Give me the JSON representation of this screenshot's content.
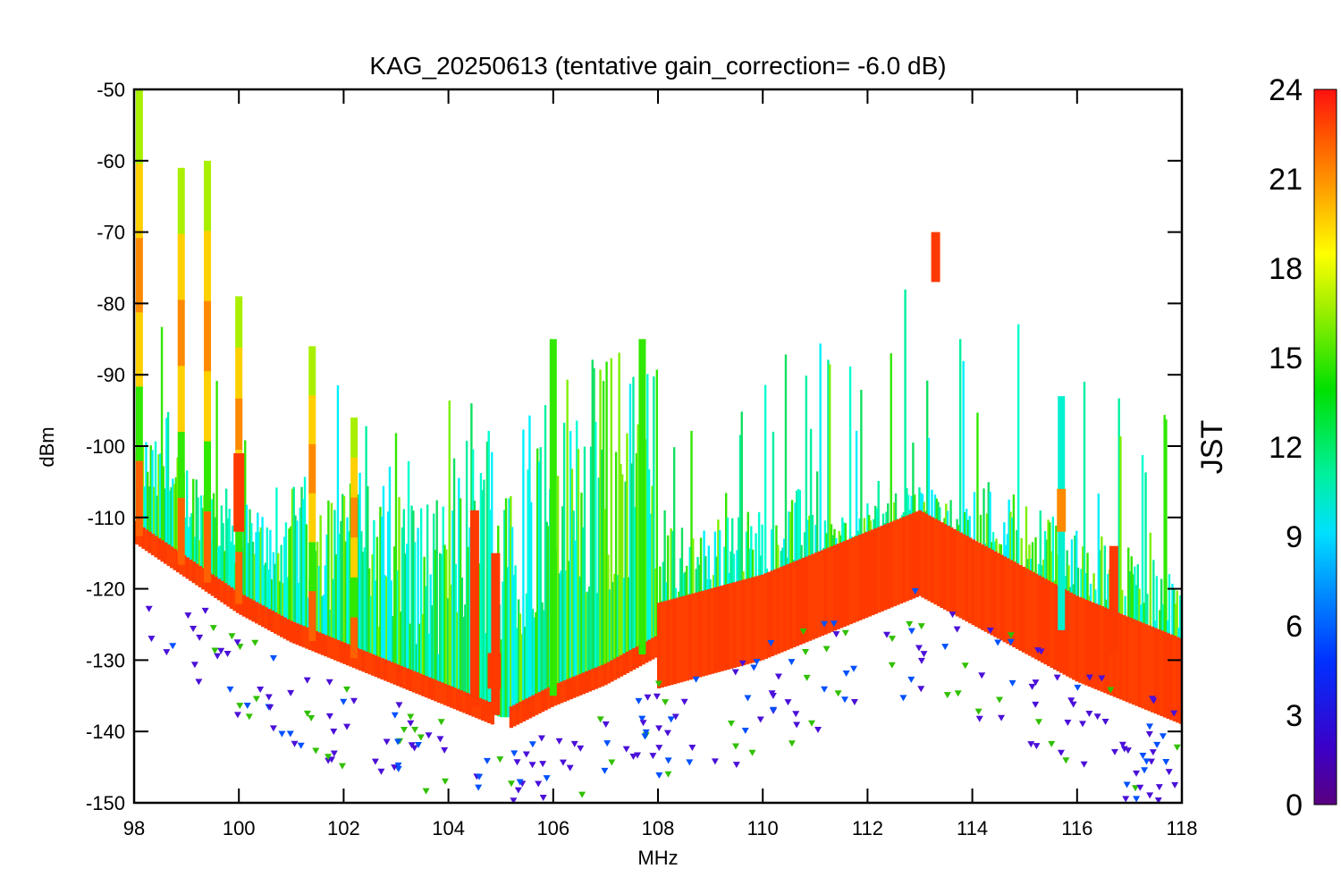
{
  "chart_data": {
    "type": "scatter",
    "title": "KAG_20250613 (tentative gain_correction= -6.0 dB)",
    "xlabel": "MHz",
    "ylabel": "dBm",
    "xlim": [
      98,
      118
    ],
    "ylim": [
      -150,
      -50
    ],
    "xticks": [
      "98",
      "100",
      "102",
      "104",
      "106",
      "108",
      "110",
      "112",
      "114",
      "116",
      "118"
    ],
    "yticks": [
      "-50",
      "-60",
      "-70",
      "-80",
      "-90",
      "-100",
      "-110",
      "-120",
      "-130",
      "-140",
      "-150"
    ],
    "grid": false,
    "colorbar": {
      "label": "JST",
      "range": [
        0,
        24
      ],
      "ticks": [
        "24",
        "21",
        "18",
        "15",
        "12",
        "9",
        "6",
        "3",
        "0"
      ],
      "colormap": "rainbow (purple-blue-cyan-green-yellow-orange-red)"
    },
    "noise_floor_dBm": {
      "x": [
        98,
        99,
        100,
        101,
        102,
        103,
        104,
        105,
        105.2,
        106,
        107,
        108,
        109,
        110,
        111,
        112,
        113,
        114,
        115,
        116,
        117,
        118
      ],
      "y": [
        -112,
        -117,
        -122,
        -126,
        -129,
        -132,
        -135,
        -138,
        -138,
        -135,
        -132,
        -128,
        -126,
        -124,
        -121,
        -118,
        -115,
        -119,
        -123,
        -127,
        -130,
        -133
      ]
    },
    "strong_peaks": [
      {
        "freq_MHz": 98.1,
        "top_dBm": -50,
        "color_hours": "mixed"
      },
      {
        "freq_MHz": 98.9,
        "top_dBm": -61,
        "color_hours": "mixed"
      },
      {
        "freq_MHz": 99.4,
        "top_dBm": -60,
        "color_hours": "mixed"
      },
      {
        "freq_MHz": 100.0,
        "top_dBm": -79,
        "color_hours": "mixed"
      },
      {
        "freq_MHz": 101.4,
        "top_dBm": -86,
        "color_hours": "mixed"
      },
      {
        "freq_MHz": 102.2,
        "top_dBm": -96,
        "color_hours": "mixed"
      },
      {
        "freq_MHz": 104.5,
        "top_dBm": -109,
        "color_hours": "red"
      },
      {
        "freq_MHz": 104.9,
        "top_dBm": -115,
        "color_hours": "red"
      },
      {
        "freq_MHz": 106.0,
        "top_dBm": -85,
        "color_hours": "green"
      },
      {
        "freq_MHz": 107.7,
        "top_dBm": -85,
        "color_hours": "green"
      },
      {
        "freq_MHz": 113.3,
        "top_dBm": -70,
        "color_hours": "red"
      },
      {
        "freq_MHz": 115.7,
        "top_dBm": -93,
        "color_hours": "cyan"
      },
      {
        "freq_MHz": 116.7,
        "top_dBm": -114,
        "color_hours": "red"
      }
    ]
  }
}
